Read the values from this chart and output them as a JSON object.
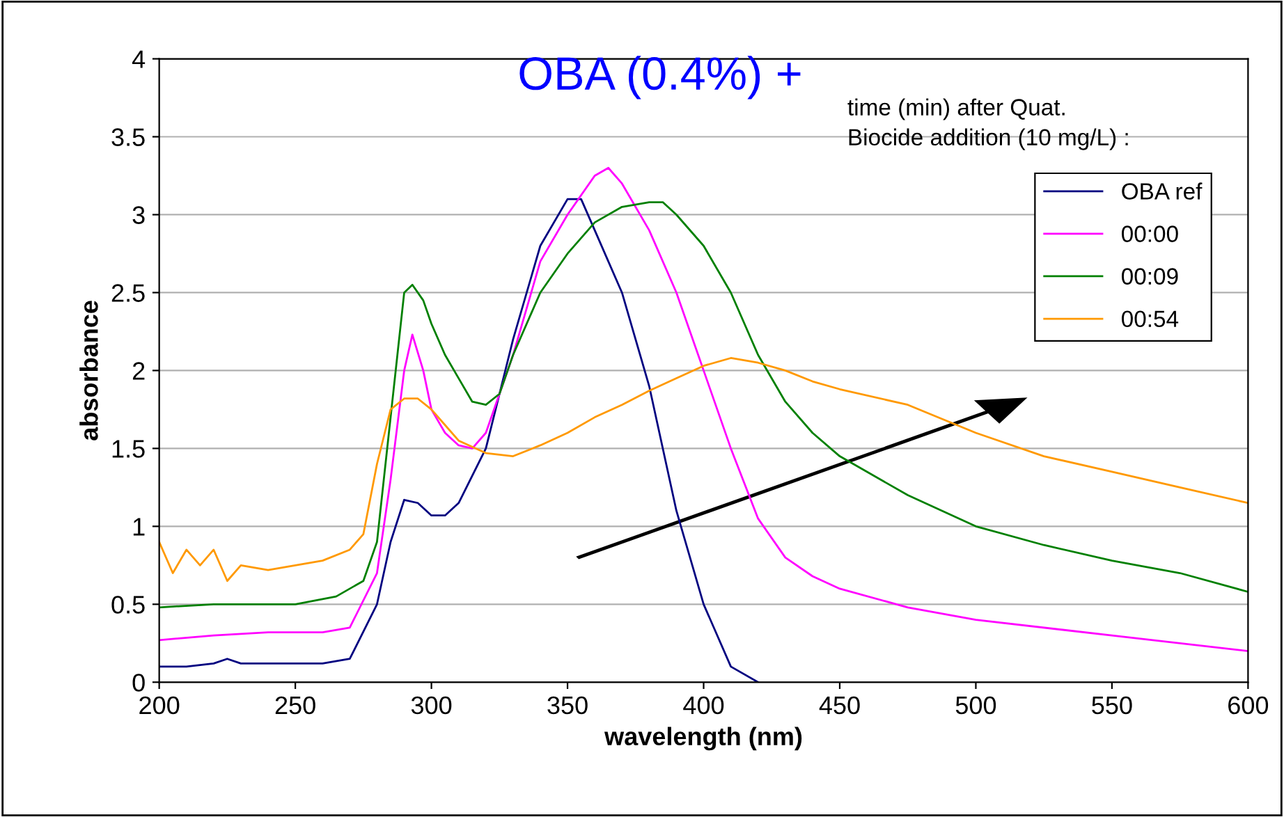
{
  "chart_data": {
    "type": "line",
    "title": "OBA (0.4%) +",
    "xlabel": "wavelength (nm)",
    "ylabel": "absorbance",
    "legend_title": "time (min) after Quat.\nBiocide addition (10 mg/L) :",
    "xlim": [
      200,
      600
    ],
    "xticks": [
      200,
      250,
      300,
      350,
      400,
      450,
      500,
      550,
      600
    ],
    "ylim": [
      0,
      4
    ],
    "yticks": [
      0,
      0.5,
      1,
      1.5,
      2,
      2.5,
      3,
      3.5,
      4
    ],
    "grid": "y",
    "legend": "top right",
    "marker": "none",
    "line_style": "solid",
    "series": [
      {
        "name": "OBA ref",
        "color": "#000080",
        "x": [
          200,
          210,
          220,
          225,
          230,
          260,
          270,
          280,
          285,
          290,
          295,
          300,
          305,
          310,
          320,
          330,
          340,
          350,
          355,
          360,
          370,
          380,
          390,
          400,
          410,
          420
        ],
        "values": [
          0.1,
          0.1,
          0.12,
          0.15,
          0.12,
          0.12,
          0.15,
          0.5,
          0.9,
          1.17,
          1.15,
          1.07,
          1.07,
          1.15,
          1.5,
          2.2,
          2.8,
          3.1,
          3.1,
          2.9,
          2.5,
          1.9,
          1.1,
          0.5,
          0.1,
          0
        ]
      },
      {
        "name": "00:00",
        "color": "#ff00ff",
        "x": [
          200,
          220,
          240,
          260,
          270,
          280,
          285,
          290,
          293,
          297,
          300,
          305,
          310,
          315,
          320,
          330,
          340,
          350,
          360,
          365,
          370,
          380,
          390,
          400,
          410,
          420,
          430,
          440,
          450,
          475,
          500,
          550,
          600
        ],
        "values": [
          0.27,
          0.3,
          0.32,
          0.32,
          0.35,
          0.7,
          1.3,
          2.0,
          2.23,
          2.0,
          1.75,
          1.6,
          1.52,
          1.5,
          1.6,
          2.1,
          2.7,
          3.0,
          3.25,
          3.3,
          3.2,
          2.9,
          2.5,
          2.0,
          1.5,
          1.05,
          0.8,
          0.68,
          0.6,
          0.48,
          0.4,
          0.3,
          0.2
        ]
      },
      {
        "name": "00:09",
        "color": "#008000",
        "x": [
          200,
          220,
          250,
          265,
          275,
          280,
          285,
          290,
          293,
          297,
          300,
          305,
          310,
          315,
          320,
          325,
          330,
          340,
          350,
          360,
          370,
          380,
          385,
          390,
          400,
          410,
          420,
          430,
          440,
          450,
          475,
          500,
          525,
          550,
          575,
          600
        ],
        "values": [
          0.48,
          0.5,
          0.5,
          0.55,
          0.65,
          0.9,
          1.7,
          2.5,
          2.55,
          2.45,
          2.3,
          2.1,
          1.95,
          1.8,
          1.78,
          1.85,
          2.1,
          2.5,
          2.75,
          2.95,
          3.05,
          3.08,
          3.08,
          3.0,
          2.8,
          2.5,
          2.1,
          1.8,
          1.6,
          1.45,
          1.2,
          1.0,
          0.88,
          0.78,
          0.7,
          0.58
        ]
      },
      {
        "name": "00:54",
        "color": "#ff9900",
        "x": [
          200,
          205,
          210,
          215,
          220,
          225,
          230,
          240,
          250,
          260,
          270,
          275,
          280,
          285,
          290,
          295,
          300,
          305,
          310,
          320,
          330,
          340,
          350,
          360,
          370,
          380,
          390,
          400,
          410,
          420,
          430,
          440,
          450,
          475,
          500,
          525,
          550,
          575,
          600
        ],
        "values": [
          0.9,
          0.7,
          0.85,
          0.75,
          0.85,
          0.65,
          0.75,
          0.72,
          0.75,
          0.78,
          0.85,
          0.95,
          1.4,
          1.75,
          1.82,
          1.82,
          1.75,
          1.65,
          1.55,
          1.47,
          1.45,
          1.52,
          1.6,
          1.7,
          1.78,
          1.87,
          1.95,
          2.03,
          2.08,
          2.05,
          2.0,
          1.93,
          1.88,
          1.78,
          1.6,
          1.45,
          1.35,
          1.25,
          1.15
        ]
      }
    ]
  }
}
